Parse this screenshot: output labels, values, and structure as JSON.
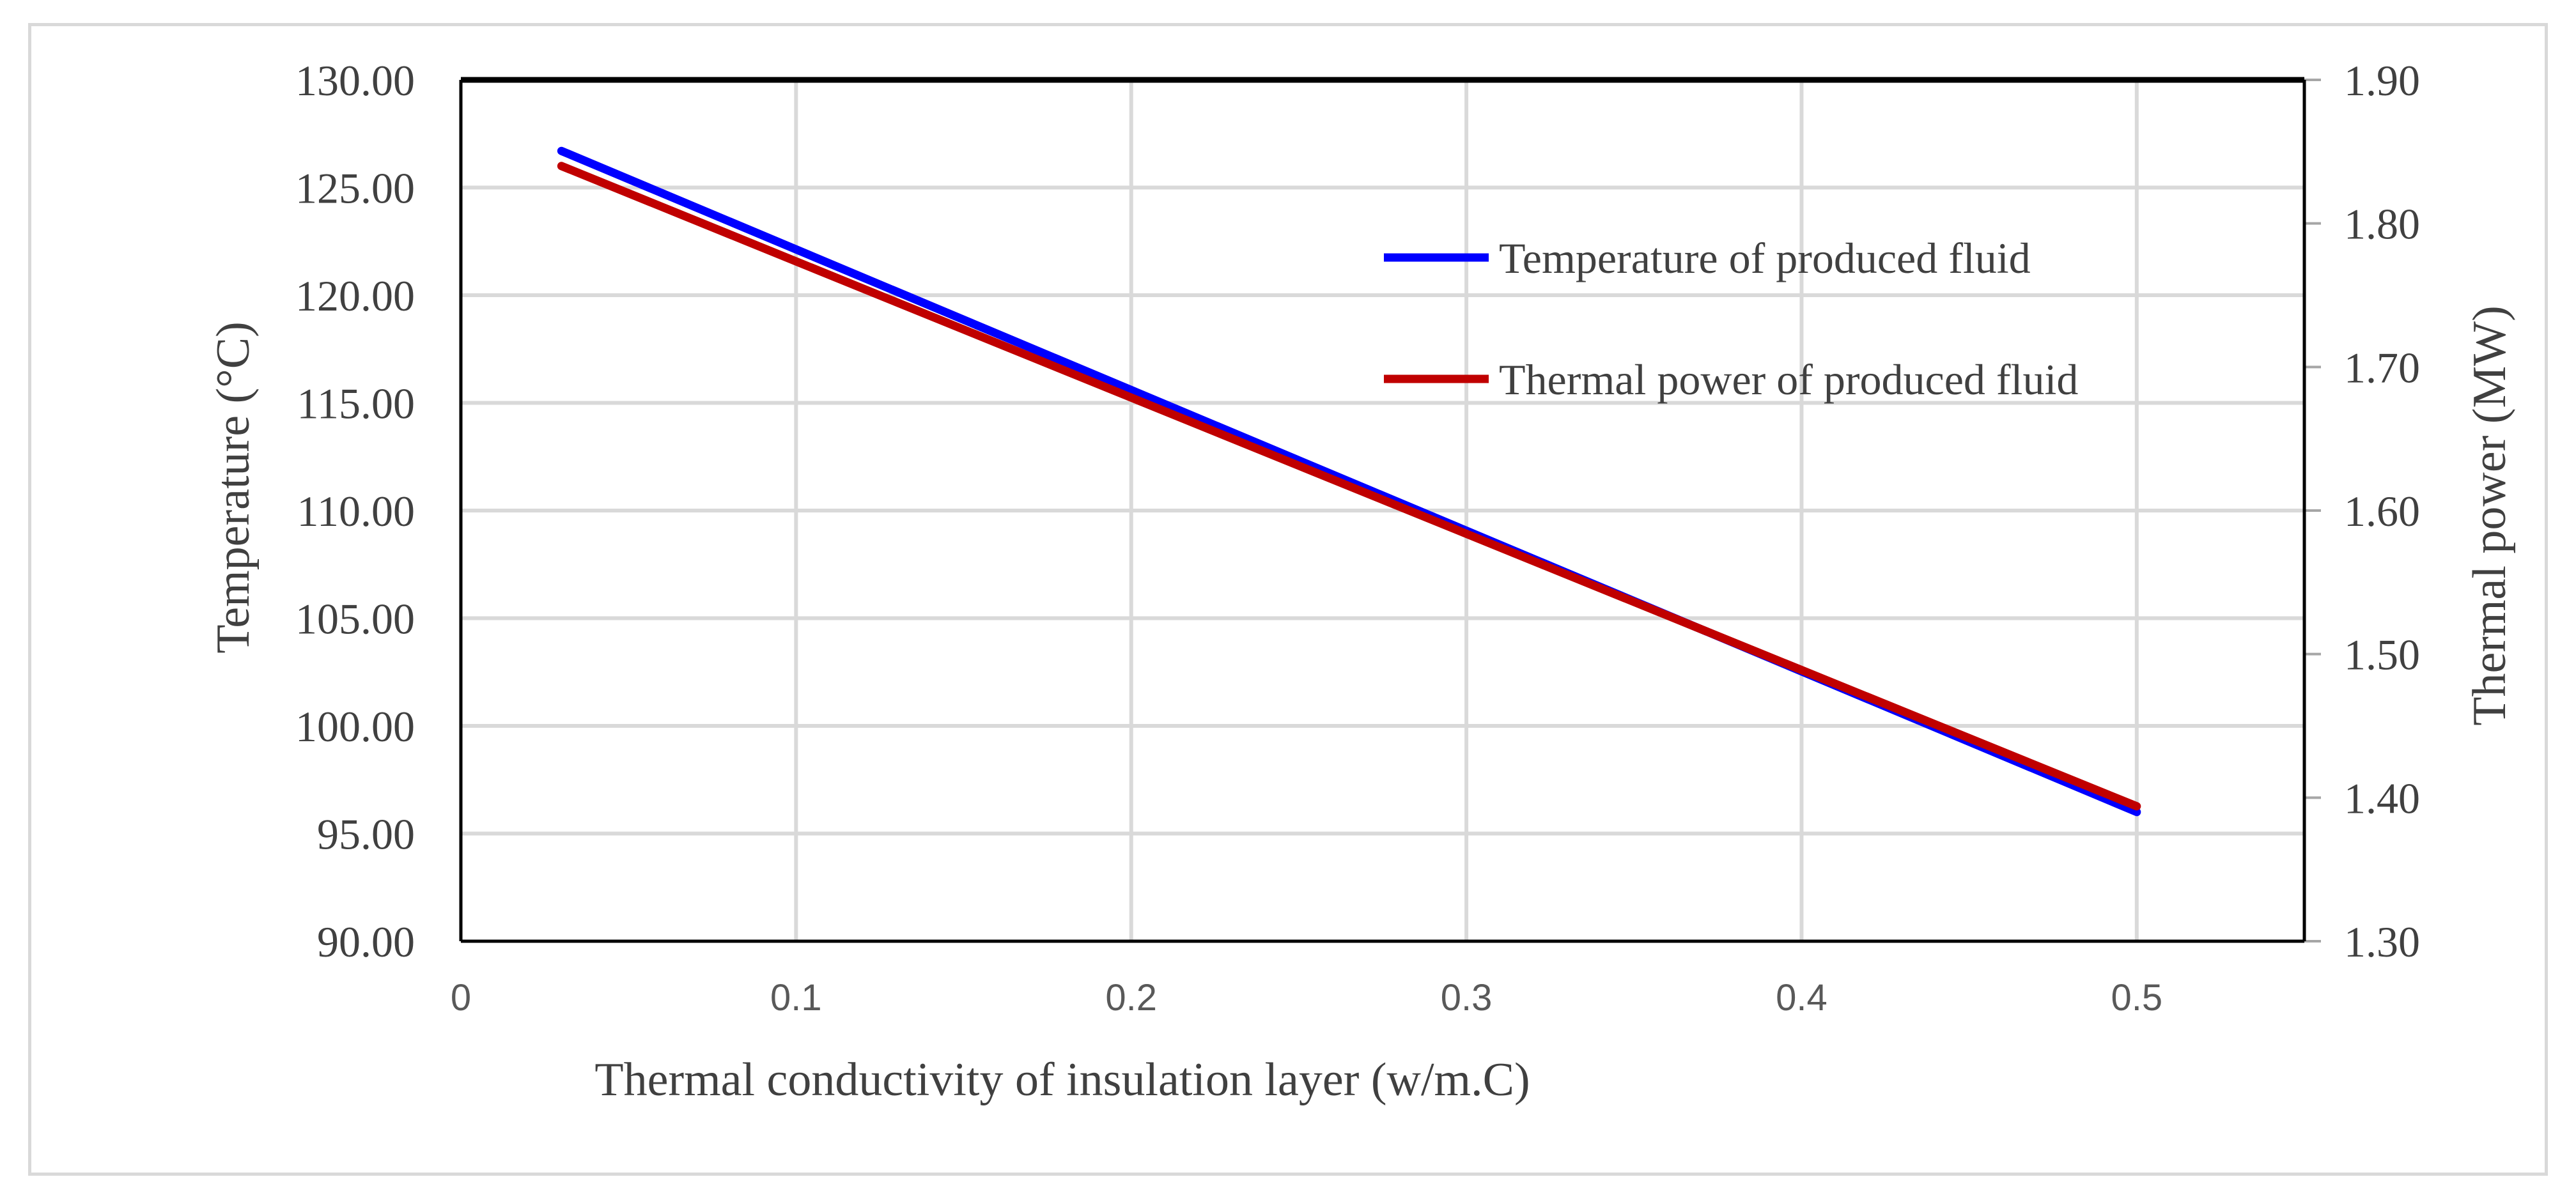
{
  "chart_data": {
    "type": "line",
    "xlabel": "Thermal conductivity of insulation layer (w/m.C)",
    "ylabel": "Temperature (°C)",
    "y2label": "Thermal power (MW)",
    "xlim": [
      0,
      0.55
    ],
    "ylim": [
      90,
      130
    ],
    "y2lim": [
      1.3,
      1.9
    ],
    "xticks": [
      "0",
      "0.1",
      "0.2",
      "0.3",
      "0.4",
      "0.5"
    ],
    "yticks": [
      "90.00",
      "95.00",
      "100.00",
      "105.00",
      "110.00",
      "115.00",
      "120.00",
      "125.00",
      "130.00"
    ],
    "y2ticks": [
      "1.30",
      "1.40",
      "1.50",
      "1.60",
      "1.70",
      "1.80",
      "1.90"
    ],
    "grid": true,
    "legend_position": "upper-right inside plot",
    "series": [
      {
        "name": "Temperature of produced fluid",
        "axis": "left",
        "color": "#0000ff",
        "x": [
          0.03,
          0.5
        ],
        "y": [
          126.7,
          96.0
        ]
      },
      {
        "name": "Thermal power of produced fluid",
        "axis": "right",
        "color": "#c00000",
        "x": [
          0.03,
          0.5
        ],
        "y": [
          1.84,
          1.394
        ]
      }
    ]
  }
}
